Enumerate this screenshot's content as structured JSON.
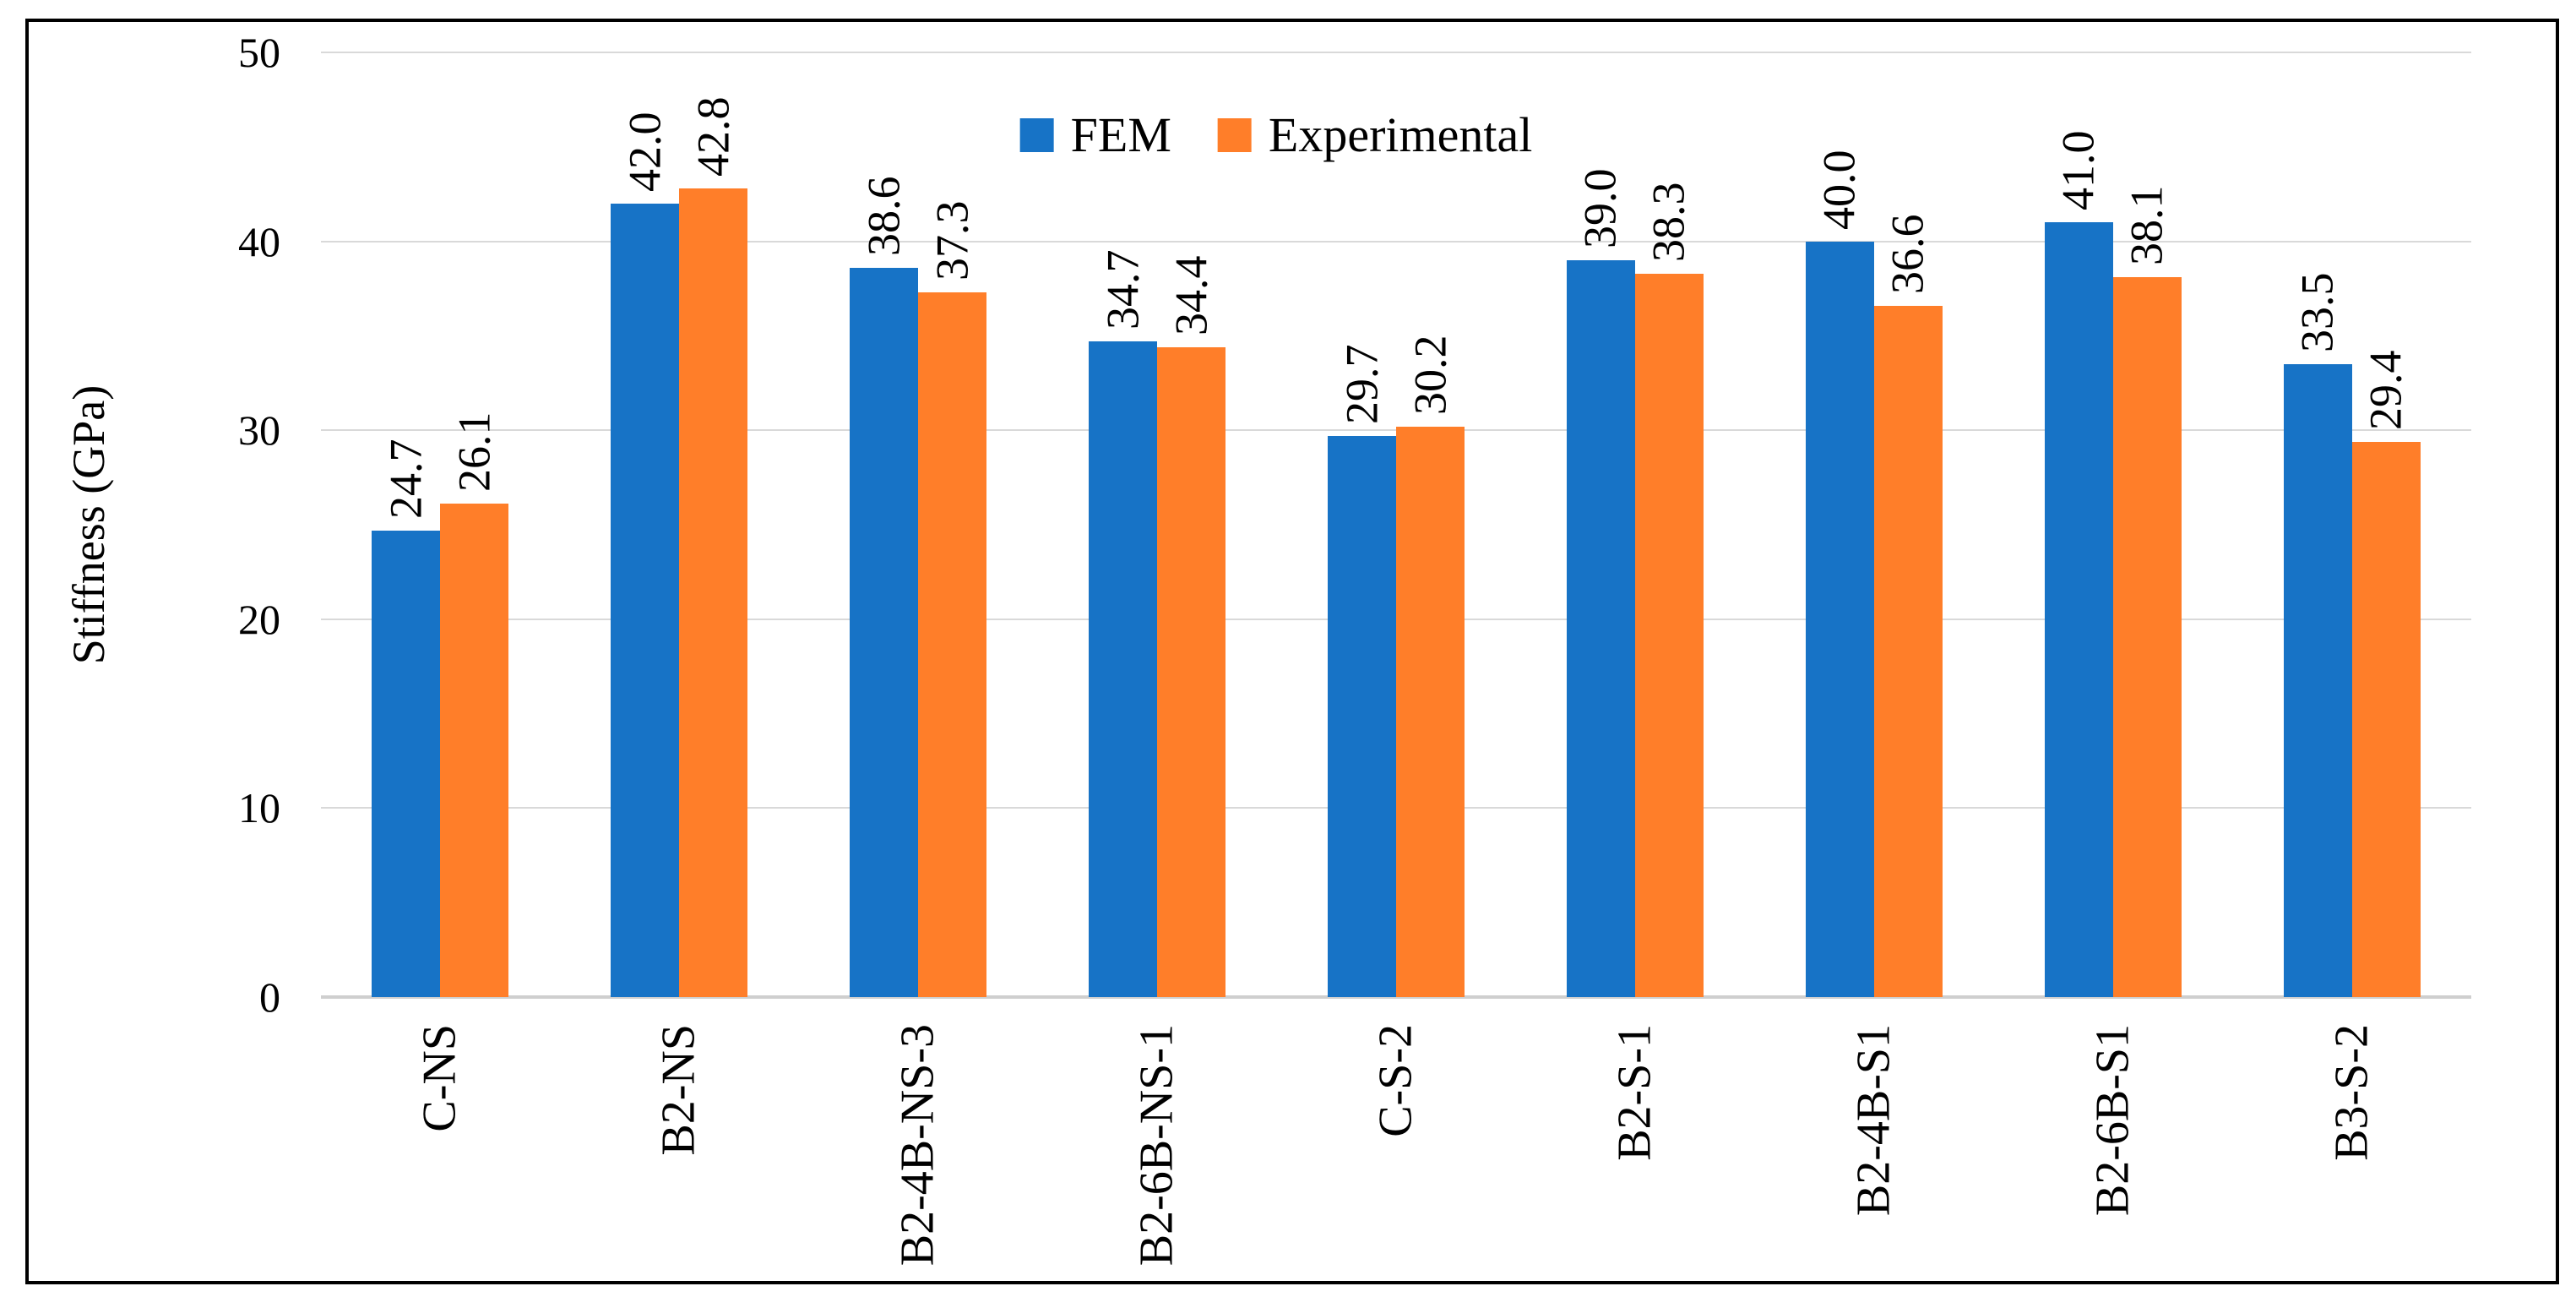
{
  "colors": {
    "fem": "#1773C6",
    "experimental": "#FF7E29",
    "gridline": "#D9D9D9",
    "axis_line": "#CFCFCF",
    "text": "#000000",
    "border": "#000000",
    "background": "#FFFFFF"
  },
  "legend": {
    "fem_label": "FEM",
    "experimental_label": "Experimental"
  },
  "chart_data": {
    "type": "bar",
    "title": "",
    "xlabel": "",
    "ylabel": "Stiffness (GPa)",
    "ylim": [
      0,
      50
    ],
    "yticks": [
      0,
      10,
      20,
      30,
      40,
      50
    ],
    "grid": "horizontal",
    "legend_position": "top-center",
    "value_labels": "rotated 90deg above bars, one decimal",
    "category_labels": "rotated 90deg below axis",
    "categories": [
      "C-NS",
      "B2-NS",
      "B2-4B-NS-3",
      "B2-6B-NS-1",
      "C-S-2",
      "B2-S-1",
      "B2-4B-S1",
      "B2-6B-S1",
      "B3-S-2"
    ],
    "series": [
      {
        "name": "FEM",
        "color": "#1773C6",
        "values": [
          24.7,
          42.0,
          38.6,
          34.7,
          29.7,
          39.0,
          40.0,
          41.0,
          33.5
        ]
      },
      {
        "name": "Experimental",
        "color": "#FF7E29",
        "values": [
          26.1,
          42.8,
          37.3,
          34.4,
          30.2,
          38.3,
          36.6,
          38.1,
          29.4
        ]
      }
    ]
  }
}
